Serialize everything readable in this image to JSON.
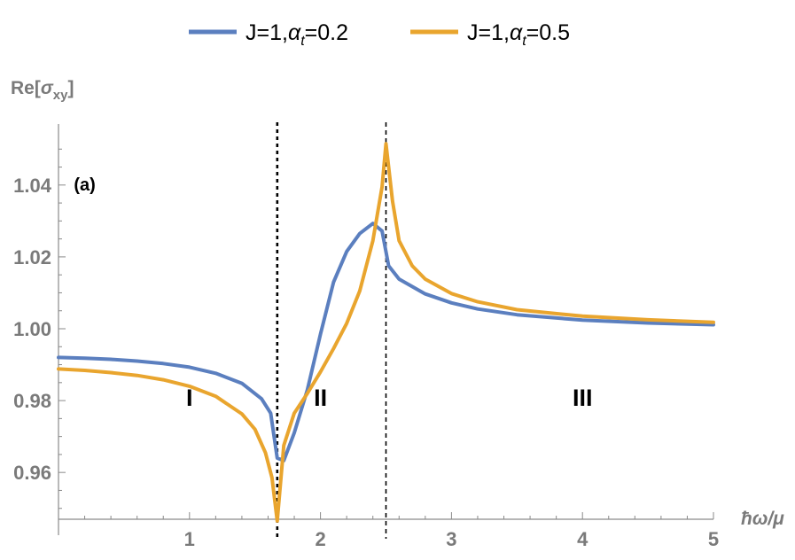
{
  "chart_data": {
    "type": "line",
    "title": "",
    "ylabel_main": "Re[",
    "ylabel_sigma": "σ",
    "ylabel_sub": "xy",
    "ylabel_close": "]",
    "xlabel": "ħω/μ",
    "xlim": [
      0,
      5
    ],
    "ylim": [
      0.945,
      1.055
    ],
    "x_ticks": [
      {
        "value": 1,
        "label": "1"
      },
      {
        "value": 2,
        "label": "2"
      },
      {
        "value": 3,
        "label": "3"
      },
      {
        "value": 4,
        "label": "4"
      },
      {
        "value": 5,
        "label": "5"
      }
    ],
    "y_ticks": [
      {
        "value": 0.96,
        "label": "0.96"
      },
      {
        "value": 0.98,
        "label": "0.98"
      },
      {
        "value": 1.0,
        "label": "1.00"
      },
      {
        "value": 1.02,
        "label": "1.02"
      },
      {
        "value": 1.04,
        "label": "1.04"
      }
    ],
    "vlines": [
      1.67,
      2.5
    ],
    "legend_position": "top-center",
    "grid": false,
    "series": [
      {
        "name_prefix": "J=1,",
        "name_symbol": "α",
        "name_sub": "t",
        "name_suffix": "=0.2",
        "color": "#5b7fbf",
        "x": [
          0.0,
          0.2,
          0.4,
          0.6,
          0.8,
          1.0,
          1.2,
          1.4,
          1.55,
          1.62,
          1.67,
          1.72,
          1.8,
          1.9,
          2.0,
          2.1,
          2.2,
          2.3,
          2.4,
          2.47,
          2.52,
          2.6,
          2.8,
          3.0,
          3.2,
          3.5,
          4.0,
          4.5,
          5.0
        ],
        "y": [
          0.992,
          0.9918,
          0.9915,
          0.991,
          0.9903,
          0.9893,
          0.9876,
          0.9848,
          0.9805,
          0.9765,
          0.964,
          0.9633,
          0.971,
          0.983,
          0.9985,
          1.013,
          1.0215,
          1.0265,
          1.0293,
          1.0272,
          1.0175,
          1.0138,
          1.0097,
          1.0072,
          1.0055,
          1.0039,
          1.0024,
          1.0016,
          1.0011
        ]
      },
      {
        "name_prefix": "J=1,",
        "name_symbol": "α",
        "name_sub": "t",
        "name_suffix": "=0.5",
        "color": "#e9a52e",
        "x": [
          0.0,
          0.2,
          0.4,
          0.6,
          0.8,
          1.0,
          1.2,
          1.4,
          1.5,
          1.58,
          1.63,
          1.67,
          1.72,
          1.8,
          1.9,
          2.0,
          2.1,
          2.2,
          2.3,
          2.4,
          2.47,
          2.5,
          2.55,
          2.6,
          2.7,
          2.8,
          3.0,
          3.2,
          3.5,
          4.0,
          4.5,
          5.0
        ],
        "y": [
          0.9888,
          0.9884,
          0.9878,
          0.987,
          0.9858,
          0.984,
          0.9812,
          0.9763,
          0.972,
          0.9655,
          0.9585,
          0.9465,
          0.9675,
          0.9765,
          0.982,
          0.988,
          0.9945,
          1.0015,
          1.0105,
          1.0245,
          1.0395,
          1.0515,
          1.0355,
          1.0245,
          1.0175,
          1.0138,
          1.0098,
          1.0075,
          1.0053,
          1.0035,
          1.0025,
          1.0018
        ]
      }
    ],
    "annotations": [
      {
        "text": "(a)",
        "x": 0.2,
        "y": 1.0385,
        "size": "small"
      },
      {
        "text": "I",
        "x": 1.0,
        "y": 0.9785,
        "size": "large"
      },
      {
        "text": "II",
        "x": 2.0,
        "y": 0.9785,
        "size": "large"
      },
      {
        "text": "III",
        "x": 4.0,
        "y": 0.9785,
        "size": "large"
      }
    ]
  }
}
